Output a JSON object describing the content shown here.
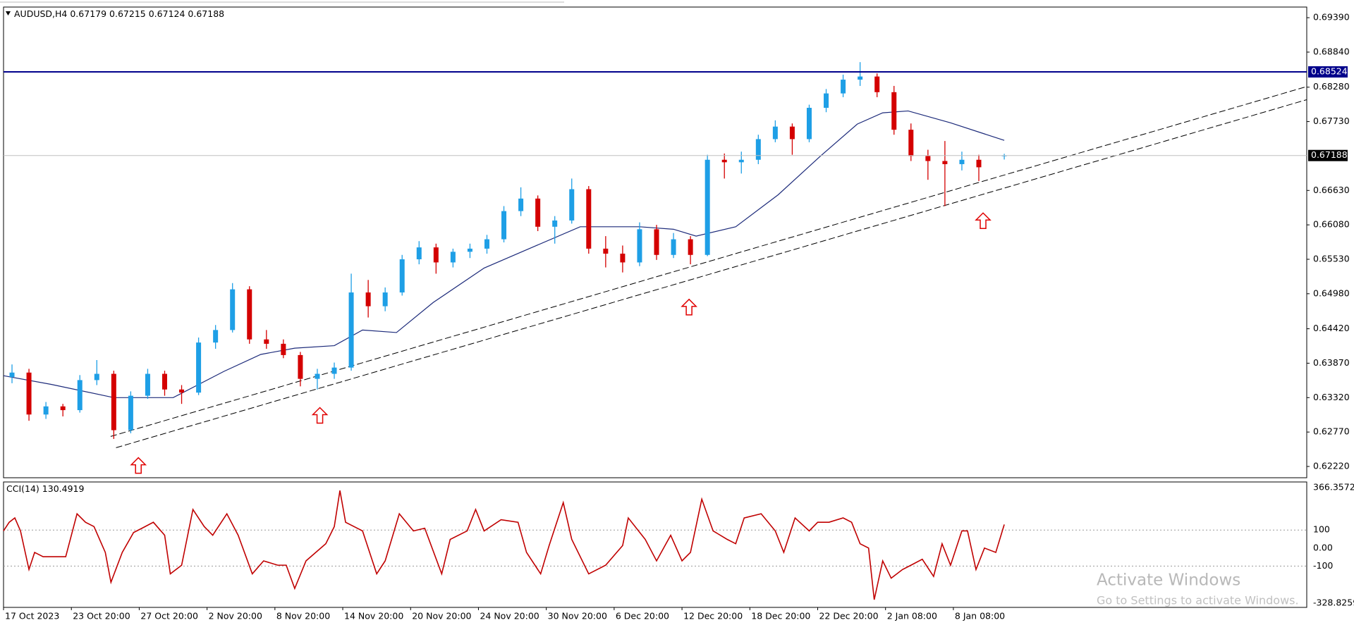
{
  "chart_data": [
    {
      "type": "candlestick",
      "symbol": "AUDUSD,H4",
      "xlim": [
        0,
        461
      ],
      "ylim": [
        0.6204,
        0.6956
      ],
      "xticks": [
        {
          "value": 0,
          "label": "17 Oct 2023"
        },
        {
          "value": 24,
          "label": "23 Oct 20:00"
        },
        {
          "value": 48,
          "label": "27 Oct 20:00"
        },
        {
          "value": 72,
          "label": "2 Nov 20:00"
        },
        {
          "value": 96,
          "label": "8 Nov 20:00"
        },
        {
          "value": 120,
          "label": "14 Nov 20:00"
        },
        {
          "value": 144,
          "label": "20 Nov 20:00"
        },
        {
          "value": 168,
          "label": "24 Nov 20:00"
        },
        {
          "value": 192,
          "label": "30 Nov 20:00"
        },
        {
          "value": 216,
          "label": "6 Dec 20:00"
        },
        {
          "value": 240,
          "label": "12 Dec 20:00"
        },
        {
          "value": 264,
          "label": "18 Dec 20:00"
        },
        {
          "value": 288,
          "label": "22 Dec 20:00"
        },
        {
          "value": 312,
          "label": "2 Jan 08:00"
        },
        {
          "value": 336,
          "label": "8 Jan 08:00"
        }
      ],
      "yticks": [
        {
          "value": 0.6939,
          "label": "0.69390"
        },
        {
          "value": 0.6884,
          "label": "0.68840"
        },
        {
          "value": 0.6828,
          "label": "0.68280"
        },
        {
          "value": 0.6773,
          "label": "0.67730"
        },
        {
          "value": 0.6663,
          "label": "0.66630"
        },
        {
          "value": 0.6608,
          "label": "0.66080"
        },
        {
          "value": 0.6553,
          "label": "0.65530"
        },
        {
          "value": 0.6498,
          "label": "0.64980"
        },
        {
          "value": 0.6442,
          "label": "0.64420"
        },
        {
          "value": 0.6387,
          "label": "0.63870"
        },
        {
          "value": 0.6332,
          "label": "0.63320"
        },
        {
          "value": 0.6277,
          "label": "0.62770"
        },
        {
          "value": 0.6222,
          "label": "0.62220"
        }
      ],
      "up_color": "#1e9fe6",
      "down_color": "#d40000",
      "candles": {
        "x": [
          3,
          9,
          15,
          21,
          27,
          33,
          39,
          45,
          51,
          57,
          63,
          69,
          75,
          81,
          87,
          93,
          99,
          105,
          111,
          117,
          123,
          129,
          135,
          141,
          147,
          153,
          159,
          165,
          171,
          177,
          183,
          189,
          195,
          201,
          207,
          213,
          219,
          225,
          231,
          237,
          243,
          249,
          255,
          261,
          267,
          273,
          279,
          285,
          291,
          297,
          303,
          309,
          315,
          321,
          327,
          333,
          339,
          345,
          354
        ],
        "open": [
          0.6365,
          0.6372,
          0.6305,
          0.6318,
          0.6312,
          0.636,
          0.637,
          0.628,
          0.6335,
          0.637,
          0.6345,
          0.634,
          0.642,
          0.644,
          0.6505,
          0.6425,
          0.6418,
          0.64,
          0.6362,
          0.637,
          0.638,
          0.65,
          0.6478,
          0.65,
          0.6553,
          0.6572,
          0.6548,
          0.6565,
          0.657,
          0.6585,
          0.663,
          0.665,
          0.6605,
          0.6615,
          0.6665,
          0.657,
          0.6562,
          0.6548,
          0.6601,
          0.656,
          0.6585,
          0.656,
          0.6712,
          0.6708,
          0.6712,
          0.6745,
          0.6765,
          0.6745,
          0.6795,
          0.6818,
          0.684,
          0.6845,
          0.682,
          0.676,
          0.6718,
          0.671,
          0.6705,
          0.6712,
          0.67179
        ],
        "high": [
          0.6385,
          0.6378,
          0.6325,
          0.6322,
          0.6368,
          0.6392,
          0.6375,
          0.6342,
          0.6378,
          0.6375,
          0.6352,
          0.6428,
          0.6448,
          0.6515,
          0.651,
          0.644,
          0.6425,
          0.6405,
          0.6378,
          0.6388,
          0.653,
          0.652,
          0.6508,
          0.656,
          0.6582,
          0.6578,
          0.657,
          0.6578,
          0.6592,
          0.6638,
          0.6668,
          0.6655,
          0.6622,
          0.6682,
          0.667,
          0.659,
          0.6575,
          0.6612,
          0.6608,
          0.6595,
          0.659,
          0.672,
          0.6722,
          0.6725,
          0.6752,
          0.6775,
          0.677,
          0.68,
          0.6825,
          0.6848,
          0.6868,
          0.685,
          0.683,
          0.677,
          0.6728,
          0.6742,
          0.6725,
          0.672,
          0.67215
        ],
        "low": [
          0.6355,
          0.6295,
          0.6298,
          0.6302,
          0.6308,
          0.6352,
          0.6266,
          0.6275,
          0.633,
          0.6335,
          0.6322,
          0.6336,
          0.641,
          0.6436,
          0.6418,
          0.641,
          0.6395,
          0.635,
          0.6345,
          0.6362,
          0.6375,
          0.646,
          0.647,
          0.6495,
          0.6545,
          0.653,
          0.654,
          0.6555,
          0.6562,
          0.658,
          0.6622,
          0.6598,
          0.6578,
          0.661,
          0.6562,
          0.654,
          0.6532,
          0.6542,
          0.6552,
          0.6555,
          0.6545,
          0.6558,
          0.6682,
          0.669,
          0.6705,
          0.674,
          0.672,
          0.674,
          0.6788,
          0.6812,
          0.683,
          0.6812,
          0.6752,
          0.671,
          0.668,
          0.6638,
          0.6695,
          0.6678,
          0.67124
        ],
        "close": [
          0.6372,
          0.6305,
          0.6318,
          0.6312,
          0.636,
          0.637,
          0.628,
          0.6335,
          0.637,
          0.6345,
          0.634,
          0.642,
          0.644,
          0.6505,
          0.6425,
          0.6418,
          0.64,
          0.6362,
          0.637,
          0.638,
          0.65,
          0.6478,
          0.65,
          0.6553,
          0.6572,
          0.6548,
          0.6565,
          0.657,
          0.6585,
          0.663,
          0.665,
          0.6605,
          0.6615,
          0.6665,
          0.657,
          0.6562,
          0.6548,
          0.6601,
          0.656,
          0.6585,
          0.656,
          0.6712,
          0.6708,
          0.6712,
          0.6745,
          0.6765,
          0.6745,
          0.6795,
          0.6818,
          0.684,
          0.6845,
          0.682,
          0.676,
          0.6718,
          0.671,
          0.6705,
          0.6712,
          0.67,
          0.67188
        ]
      },
      "moving_average": {
        "color": "#1c2a7a",
        "x": [
          0,
          17,
          39,
          60,
          78,
          91,
          103,
          117,
          127,
          139,
          152,
          170,
          188,
          204,
          225,
          237,
          245,
          259,
          274,
          289,
          302,
          311,
          320,
          335,
          354
        ],
        "values": [
          0.6367,
          0.6353,
          0.6332,
          0.6332,
          0.6374,
          0.6401,
          0.6411,
          0.6415,
          0.644,
          0.6436,
          0.6484,
          0.6539,
          0.6574,
          0.6605,
          0.6605,
          0.6601,
          0.659,
          0.6605,
          0.6656,
          0.6718,
          0.6769,
          0.6787,
          0.679,
          0.6771,
          0.6743
        ]
      },
      "levels": [
        {
          "value": 0.68524,
          "color": "#00008b"
        }
      ],
      "current_price_color": "#c0c0c0",
      "trendlines": [
        {
          "x": [
            37.9,
            461
          ],
          "values": [
            0.627,
            0.6829
          ]
        },
        {
          "x": [
            39.8,
            461
          ],
          "values": [
            0.6252,
            0.6808
          ]
        }
      ],
      "arrows": {
        "color": "#e00000",
        "x": [
          47.7,
          111.9,
          242.5,
          346.5
        ],
        "values": [
          0.6236,
          0.6316,
          0.6489,
          0.6627
        ]
      }
    },
    {
      "type": "line",
      "name": "CCI(14)",
      "color": "#c00000",
      "ylim": [
        -328.8259,
        366.3572
      ],
      "yticks": [
        366.3572,
        100,
        {
          "value": 0,
          "label": "0.00"
        },
        -100,
        -328.8259
      ],
      "x": [
        0,
        2,
        4,
        6,
        9,
        11,
        14,
        17,
        22,
        26,
        29,
        32,
        36,
        38,
        42,
        46,
        49,
        53,
        57,
        59,
        63,
        67,
        71,
        74,
        79,
        83,
        88,
        92,
        97,
        100,
        103,
        107,
        114,
        117,
        119,
        121,
        127,
        132,
        135,
        140,
        145,
        149,
        155,
        158,
        164,
        167,
        170,
        176,
        182,
        185,
        190,
        193,
        198,
        201,
        207,
        213,
        219,
        221,
        227,
        231,
        236,
        240,
        243,
        247,
        251,
        256,
        259,
        262,
        268,
        273,
        276,
        280,
        285,
        288,
        292,
        297,
        300,
        303,
        306,
        308,
        311,
        314,
        318,
        321,
        325,
        329,
        332,
        335,
        339,
        341,
        344,
        347,
        351,
        354
      ],
      "values": [
        95,
        143,
        167,
        95,
        -119,
        -24,
        -48,
        -48,
        -48,
        190,
        143,
        119,
        -24,
        -190,
        -24,
        86,
        110,
        143,
        71,
        -143,
        -95,
        214,
        119,
        71,
        190,
        71,
        -143,
        -71,
        -95,
        -95,
        -224,
        -71,
        24,
        119,
        319,
        143,
        95,
        -143,
        -71,
        190,
        95,
        110,
        -143,
        48,
        95,
        214,
        95,
        157,
        143,
        -24,
        -143,
        14,
        252,
        48,
        -143,
        -95,
        14,
        167,
        48,
        -71,
        71,
        -71,
        -24,
        271,
        95,
        48,
        24,
        167,
        190,
        95,
        -24,
        167,
        95,
        143,
        143,
        167,
        143,
        24,
        0,
        -286,
        -71,
        -167,
        -119,
        -95,
        -62,
        -157,
        24,
        -95,
        95,
        95,
        -119,
        0,
        -24,
        130.4919
      ]
    }
  ],
  "watermark": {
    "line1": "Activate Windows",
    "line2": "Go to Settings to activate Windows."
  }
}
